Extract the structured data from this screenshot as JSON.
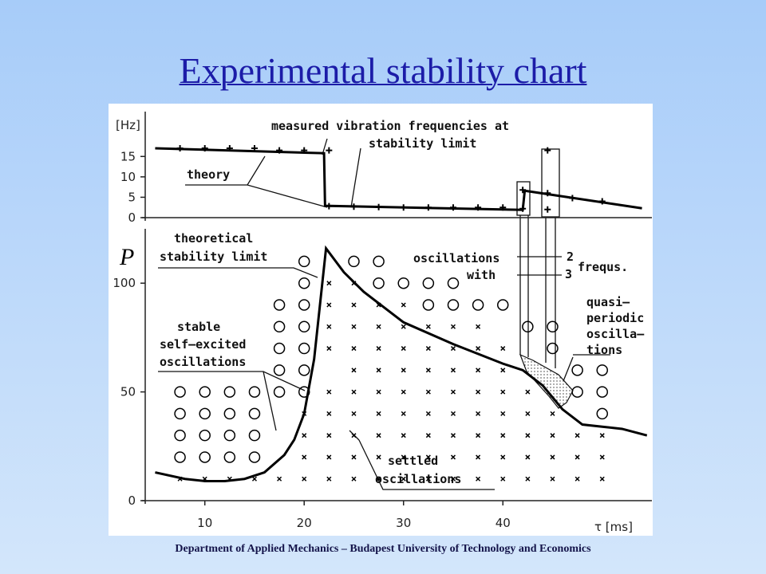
{
  "title": "Experimental stability chart",
  "footer": "Department of Applied Mechanics – Budapest University of Technology and Economics",
  "chart_data": [
    {
      "type": "line",
      "ylabel": "[Hz]",
      "annotations": [
        "measured vibration frequencies at",
        "stability limit",
        "theory"
      ],
      "xlim": [
        4,
        55
      ],
      "ylim": [
        0,
        26
      ],
      "yticks": [
        0,
        5,
        10,
        15
      ],
      "series": [
        {
          "type": "line",
          "color": "#000000",
          "x": [
            5,
            22,
            22.1,
            42,
            42.2,
            54
          ],
          "y": [
            17,
            15.8,
            2.9,
            1.9,
            6.6,
            2.3
          ]
        },
        {
          "type": "plus",
          "color": "#000000",
          "x": [
            7.5,
            10,
            12.5,
            15,
            17.5,
            20,
            22.5,
            22.5,
            25,
            27.5,
            30,
            32.5,
            35,
            37.5,
            40,
            42,
            42,
            44.5,
            44.5,
            44.5,
            47,
            50
          ],
          "y": [
            17,
            17,
            17,
            17,
            16.5,
            16.5,
            16.5,
            2.8,
            2.7,
            2.6,
            2.5,
            2.5,
            2.5,
            2.5,
            2.5,
            6.8,
            2.2,
            16.5,
            6,
            2,
            4.8,
            4
          ]
        }
      ]
    },
    {
      "type": "scatter",
      "ylabel": "P",
      "xlabel": "τ [ms]",
      "annotations": [
        "theoretical",
        "stability limit",
        "oscillations",
        "with",
        "2",
        "3",
        "frequs.",
        "quasi–",
        "periodic",
        "oscilla–",
        "tions",
        "stable",
        "self–excited",
        "oscillations",
        "settled",
        "oscillations"
      ],
      "xlim": [
        4,
        55
      ],
      "ylim": [
        0,
        125
      ],
      "xticks": [
        10,
        20,
        30,
        40
      ],
      "yticks": [
        0,
        50,
        100
      ],
      "series": [
        {
          "type": "line",
          "color": "#000000",
          "x": [
            5,
            8,
            10,
            12,
            14,
            16,
            18,
            19,
            20,
            21,
            22.2,
            24,
            26,
            30,
            35,
            40,
            42,
            44,
            46,
            48,
            50,
            52,
            54.5
          ],
          "y": [
            13,
            10,
            9,
            9,
            10,
            13,
            21,
            28,
            40,
            65,
            116,
            105,
            96,
            82,
            72,
            63,
            60,
            53,
            42,
            35,
            34,
            33,
            30
          ]
        },
        {
          "type": "circle",
          "color": "#000000",
          "x": [
            20,
            25,
            27.5,
            20,
            27.5,
            30,
            32.5,
            35,
            17.5,
            20,
            32.5,
            35,
            37.5,
            40,
            17.5,
            20,
            42.5,
            45,
            17.5,
            20,
            45,
            17.5,
            20,
            47.5,
            50,
            7.5,
            10,
            12.5,
            15,
            17.5,
            20,
            47.5,
            50,
            7.5,
            10,
            12.5,
            15,
            50,
            7.5,
            10,
            12.5,
            15,
            7.5,
            10,
            12.5,
            15
          ],
          "y": [
            110,
            110,
            110,
            100,
            100,
            100,
            100,
            100,
            90,
            90,
            90,
            90,
            90,
            90,
            80,
            80,
            80,
            80,
            70,
            70,
            70,
            60,
            60,
            60,
            60,
            50,
            50,
            50,
            50,
            50,
            50,
            50,
            50,
            40,
            40,
            40,
            40,
            40,
            30,
            30,
            30,
            30,
            20,
            20,
            20,
            20
          ]
        },
        {
          "type": "cross",
          "color": "#000000",
          "x": [
            22.5,
            25,
            22.5,
            25,
            27.5,
            30,
            22.5,
            25,
            27.5,
            30,
            32.5,
            35,
            37.5,
            22.5,
            25,
            27.5,
            30,
            32.5,
            35,
            37.5,
            40,
            25,
            27.5,
            30,
            32.5,
            35,
            37.5,
            40,
            22.5,
            25,
            27.5,
            30,
            32.5,
            35,
            37.5,
            40,
            42.5,
            20,
            22.5,
            25,
            27.5,
            30,
            32.5,
            35,
            37.5,
            40,
            42.5,
            45,
            20,
            22.5,
            25,
            27.5,
            30,
            32.5,
            35,
            37.5,
            40,
            42.5,
            45,
            47.5,
            50,
            20,
            22.5,
            25,
            27.5,
            30,
            32.5,
            35,
            37.5,
            40,
            42.5,
            45,
            47.5,
            50,
            7.5,
            10,
            12.5,
            15,
            17.5,
            20,
            22.5,
            25,
            27.5,
            30,
            32.5,
            35,
            37.5,
            40,
            42.5,
            45,
            47.5,
            50
          ],
          "y": [
            100,
            100,
            90,
            90,
            90,
            90,
            80,
            80,
            80,
            80,
            80,
            80,
            80,
            70,
            70,
            70,
            70,
            70,
            70,
            70,
            70,
            60,
            60,
            60,
            60,
            60,
            60,
            60,
            50,
            50,
            50,
            50,
            50,
            50,
            50,
            50,
            50,
            40,
            40,
            40,
            40,
            40,
            40,
            40,
            40,
            40,
            40,
            40,
            30,
            30,
            30,
            30,
            30,
            30,
            30,
            30,
            30,
            30,
            30,
            30,
            30,
            20,
            20,
            20,
            20,
            20,
            20,
            20,
            20,
            20,
            20,
            20,
            20,
            20,
            10,
            10,
            10,
            10,
            10,
            10,
            10,
            10,
            10,
            10,
            10,
            10,
            10,
            10,
            10,
            10,
            10,
            10
          ]
        }
      ]
    }
  ]
}
